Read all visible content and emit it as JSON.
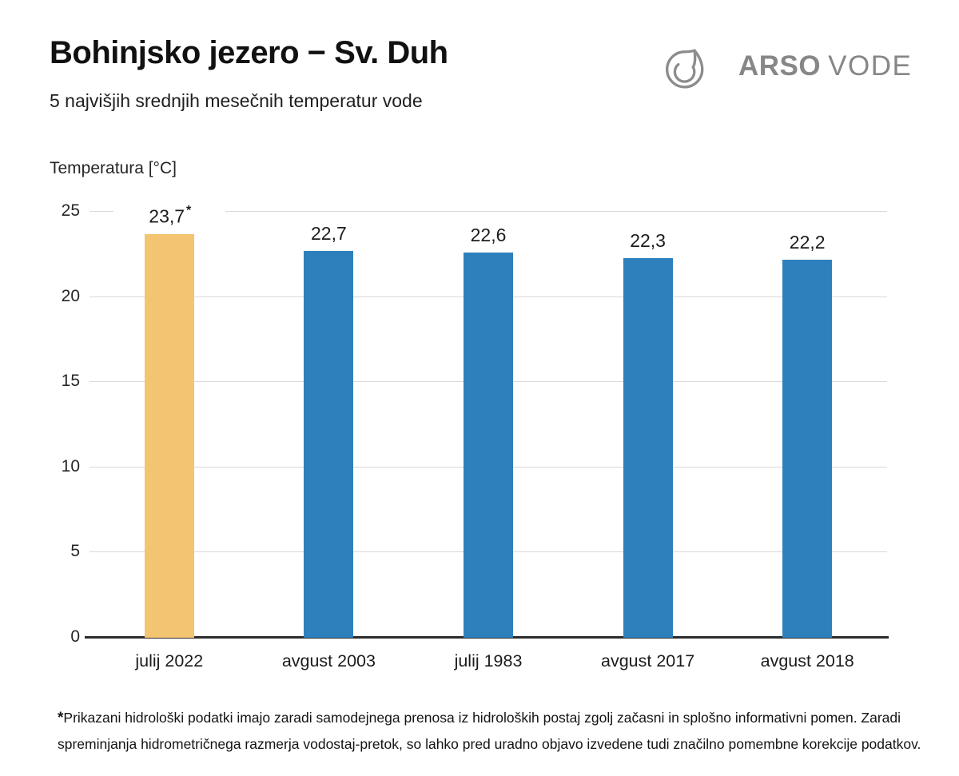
{
  "header": {
    "title": "Bohinjsko jezero − Sv. Duh",
    "subtitle": "5 najvišjih srednjih mesečnih temperatur vode",
    "logo": {
      "icon": "water-drop-icon",
      "brand_bold": "ARSO",
      "brand_light": "VODE",
      "color": "#878787"
    }
  },
  "chart_data": {
    "type": "bar",
    "title": "5 najvišjih srednjih mesečnih temperatur vode",
    "ylabel": "Temperatura [°C]",
    "xlabel": "",
    "categories": [
      "julij 2022",
      "avgust 2003",
      "julij 1983",
      "avgust 2017",
      "avgust 2018"
    ],
    "values": [
      23.7,
      22.7,
      22.6,
      22.3,
      22.2
    ],
    "value_labels": [
      "23,7",
      "22,7",
      "22,6",
      "22,3",
      "22,2"
    ],
    "highlight_index": 0,
    "note_marker": "*",
    "yticks": [
      0,
      5,
      10,
      15,
      20,
      25
    ],
    "ylim": [
      0,
      25
    ],
    "grid": true,
    "legend": "none",
    "bar_colors": {
      "default": "#2E80BD",
      "highlight": "#F3C471"
    }
  },
  "footnote": {
    "marker": "*",
    "text": "Prikazani hidrološki podatki imajo zaradi samodejnega prenosa iz hidroloških postaj zgolj začasni in splošno informativni pomen. Zaradi spreminjanja hidrometričnega razmerja vodostaj-pretok, so lahko pred uradno objavo izvedene tudi značilno pomembne korekcije podatkov."
  }
}
